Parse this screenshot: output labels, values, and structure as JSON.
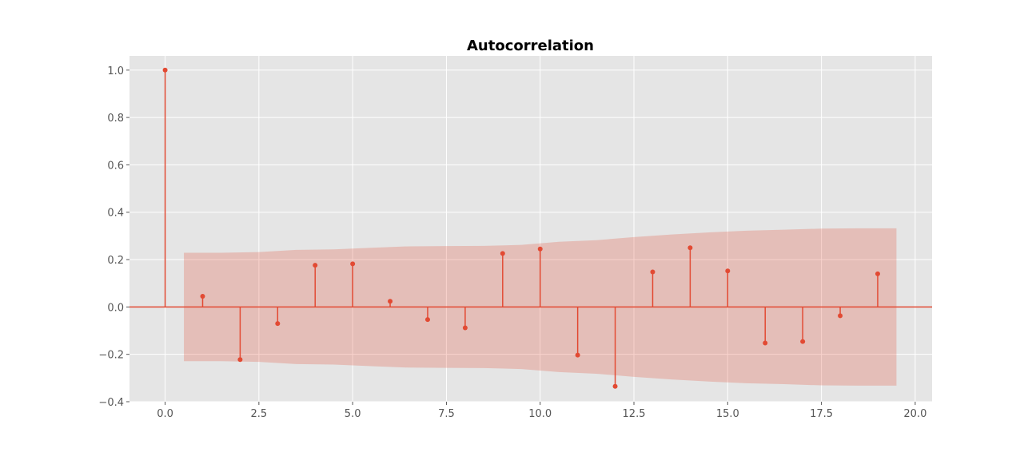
{
  "chart_data": {
    "type": "stem",
    "title": "Autocorrelation",
    "xlabel": "",
    "ylabel": "",
    "xlim": [
      -0.95,
      20.45
    ],
    "ylim": [
      -0.4,
      1.06
    ],
    "x_ticks": [
      "0.0",
      "2.5",
      "5.0",
      "7.5",
      "10.0",
      "12.5",
      "15.0",
      "17.5",
      "20.0"
    ],
    "y_ticks": [
      "−0.4",
      "−0.2",
      "0.0",
      "0.2",
      "0.4",
      "0.6",
      "0.8",
      "1.0"
    ],
    "grid": true,
    "lags": [
      0,
      1,
      2,
      3,
      4,
      5,
      6,
      7,
      8,
      9,
      10,
      11,
      12,
      13,
      14,
      15,
      16,
      17,
      18,
      19
    ],
    "values": [
      1.0,
      0.045,
      -0.222,
      -0.07,
      0.176,
      0.182,
      0.024,
      -0.053,
      -0.088,
      0.226,
      0.245,
      -0.203,
      -0.335,
      0.148,
      0.25,
      0.152,
      -0.152,
      -0.146,
      -0.037,
      0.14
    ],
    "confidence_band": {
      "x": [
        0.5,
        1.5,
        2.5,
        3.5,
        4.5,
        5.5,
        6.5,
        7.5,
        8.5,
        9.5,
        10.5,
        11.5,
        12.5,
        13.5,
        14.5,
        15.5,
        16.5,
        17.5,
        18.5,
        19.5
      ],
      "upper": [
        0.229,
        0.229,
        0.232,
        0.241,
        0.243,
        0.25,
        0.256,
        0.257,
        0.258,
        0.262,
        0.275,
        0.282,
        0.295,
        0.306,
        0.315,
        0.322,
        0.326,
        0.331,
        0.332,
        0.332
      ],
      "lower": [
        -0.229,
        -0.229,
        -0.232,
        -0.241,
        -0.243,
        -0.25,
        -0.256,
        -0.257,
        -0.258,
        -0.262,
        -0.275,
        -0.282,
        -0.295,
        -0.306,
        -0.315,
        -0.322,
        -0.326,
        -0.331,
        -0.332,
        -0.332
      ]
    },
    "colors": {
      "series": "#e24a33",
      "band": "#e24a33",
      "axes_bg": "#e5e5e5",
      "grid": "#ffffff",
      "tick_text": "#555555"
    }
  }
}
